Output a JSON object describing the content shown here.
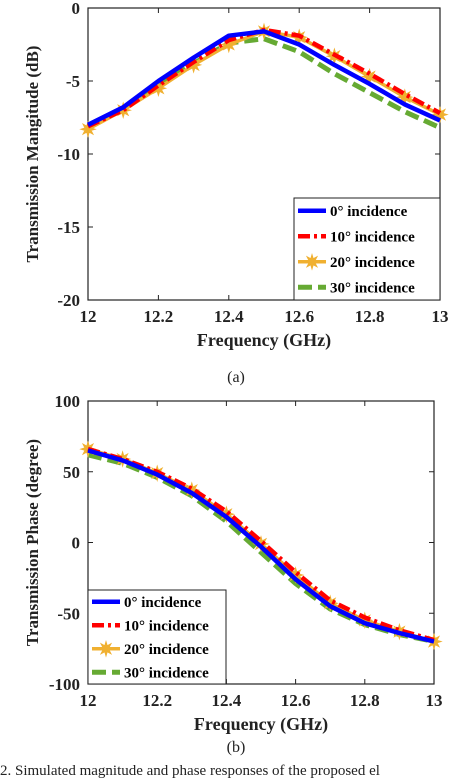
{
  "chart_data": [
    {
      "type": "line",
      "xlabel": "Frequency (GHz)",
      "ylabel": "Transmission Mangitude (dB)",
      "xlim": [
        12,
        13
      ],
      "ylim": [
        -20,
        0
      ],
      "xticks": [
        "12",
        "12.2",
        "12.4",
        "12.6",
        "12.8",
        "13"
      ],
      "yticks": [
        "0",
        "-5",
        "-10",
        "-15",
        "-20"
      ],
      "legend_position": "bottom-right",
      "subcaption": "(a)",
      "series": [
        {
          "name": "0° incidence",
          "color": "#0000ff",
          "style": "solid",
          "x": [
            12,
            12.1,
            12.2,
            12.3,
            12.4,
            12.5,
            12.6,
            12.7,
            12.8,
            12.9,
            13
          ],
          "y": [
            -8.0,
            -6.8,
            -5.0,
            -3.4,
            -1.9,
            -1.6,
            -2.5,
            -3.9,
            -5.2,
            -6.6,
            -7.7
          ]
        },
        {
          "name": "10° incidence",
          "color": "#ff0000",
          "style": "dashdot",
          "x": [
            12,
            12.1,
            12.2,
            12.3,
            12.4,
            12.5,
            12.6,
            12.7,
            12.8,
            12.9,
            13
          ],
          "y": [
            -8.1,
            -7.0,
            -5.3,
            -3.7,
            -2.2,
            -1.5,
            -1.9,
            -3.2,
            -4.5,
            -5.9,
            -7.2
          ]
        },
        {
          "name": "20° incidence",
          "color": "#f0b030",
          "style": "marker-line",
          "x": [
            12,
            12.1,
            12.2,
            12.3,
            12.4,
            12.5,
            12.6,
            12.7,
            12.8,
            12.9,
            13
          ],
          "y": [
            -8.3,
            -7.0,
            -5.5,
            -3.9,
            -2.5,
            -1.6,
            -2.0,
            -3.3,
            -4.7,
            -6.1,
            -7.3
          ]
        },
        {
          "name": "30° incidence",
          "color": "#66aa33",
          "style": "dashed",
          "x": [
            12,
            12.1,
            12.2,
            12.3,
            12.4,
            12.5,
            12.6,
            12.7,
            12.8,
            12.9,
            13
          ],
          "y": [
            -8.2,
            -6.9,
            -5.2,
            -3.8,
            -2.4,
            -2.1,
            -3.0,
            -4.5,
            -5.8,
            -7.1,
            -8.2
          ]
        }
      ]
    },
    {
      "type": "line",
      "xlabel": "Frequency (GHz)",
      "ylabel": "Transmission Phase (degree)",
      "xlim": [
        12,
        13
      ],
      "ylim": [
        -100,
        100
      ],
      "xticks": [
        "12",
        "12.2",
        "12.4",
        "12.6",
        "12.8",
        "13"
      ],
      "yticks": [
        "100",
        "50",
        "0",
        "-50",
        "-100"
      ],
      "legend_position": "bottom-left",
      "subcaption": "(b)",
      "series": [
        {
          "name": "0° incidence",
          "color": "#0000ff",
          "style": "solid",
          "x": [
            12,
            12.1,
            12.2,
            12.3,
            12.4,
            12.5,
            12.6,
            12.7,
            12.8,
            12.9,
            13
          ],
          "y": [
            65,
            58,
            48,
            35,
            18,
            -3,
            -26,
            -45,
            -57,
            -64,
            -70
          ]
        },
        {
          "name": "10° incidence",
          "color": "#ff0000",
          "style": "dashdot",
          "x": [
            12,
            12.1,
            12.2,
            12.3,
            12.4,
            12.5,
            12.6,
            12.7,
            12.8,
            12.9,
            13
          ],
          "y": [
            66,
            59,
            50,
            38,
            22,
            1,
            -21,
            -41,
            -53,
            -62,
            -69
          ]
        },
        {
          "name": "20° incidence",
          "color": "#f0b030",
          "style": "marker-line",
          "x": [
            12,
            12.1,
            12.2,
            12.3,
            12.4,
            12.5,
            12.6,
            12.7,
            12.8,
            12.9,
            13
          ],
          "y": [
            66,
            59,
            49,
            37,
            20,
            -1,
            -23,
            -43,
            -55,
            -63,
            -70
          ]
        },
        {
          "name": "30° incidence",
          "color": "#66aa33",
          "style": "dashed",
          "x": [
            12,
            12.1,
            12.2,
            12.3,
            12.4,
            12.5,
            12.6,
            12.7,
            12.8,
            12.9,
            13
          ],
          "y": [
            62,
            56,
            46,
            33,
            15,
            -7,
            -29,
            -47,
            -58,
            -65,
            -70
          ]
        }
      ]
    }
  ],
  "caption": "2. Simulated magnitude and phase responses of the proposed el"
}
